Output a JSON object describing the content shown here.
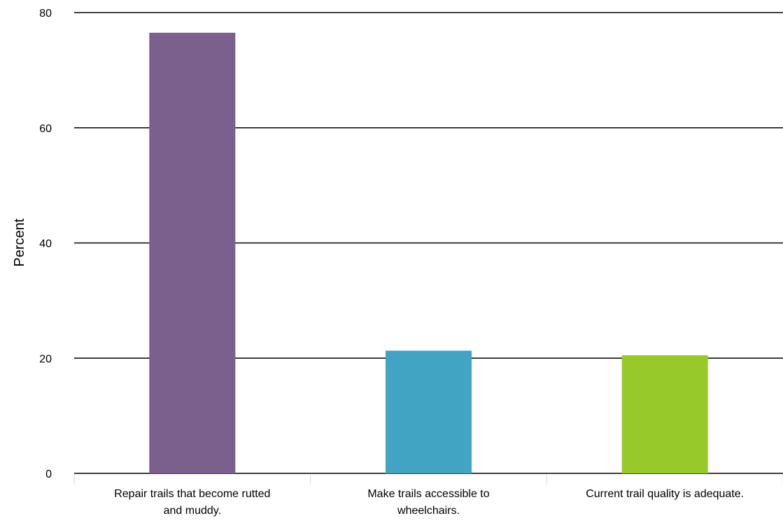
{
  "chart_data": {
    "type": "bar",
    "ylabel": "Percent",
    "xlabel": "",
    "ylim": [
      0,
      80
    ],
    "yticks": [
      0,
      20,
      40,
      60,
      80
    ],
    "grid": true,
    "categories": [
      [
        "Repair trails that become rutted",
        "and muddy."
      ],
      [
        "Make trails accessible to",
        "wheelchairs."
      ],
      [
        "Current trail quality is adequate."
      ]
    ],
    "values": [
      76.5,
      21.3,
      20.5
    ],
    "colors": [
      "#7B608D",
      "#42A4C3",
      "#97C92A"
    ]
  }
}
